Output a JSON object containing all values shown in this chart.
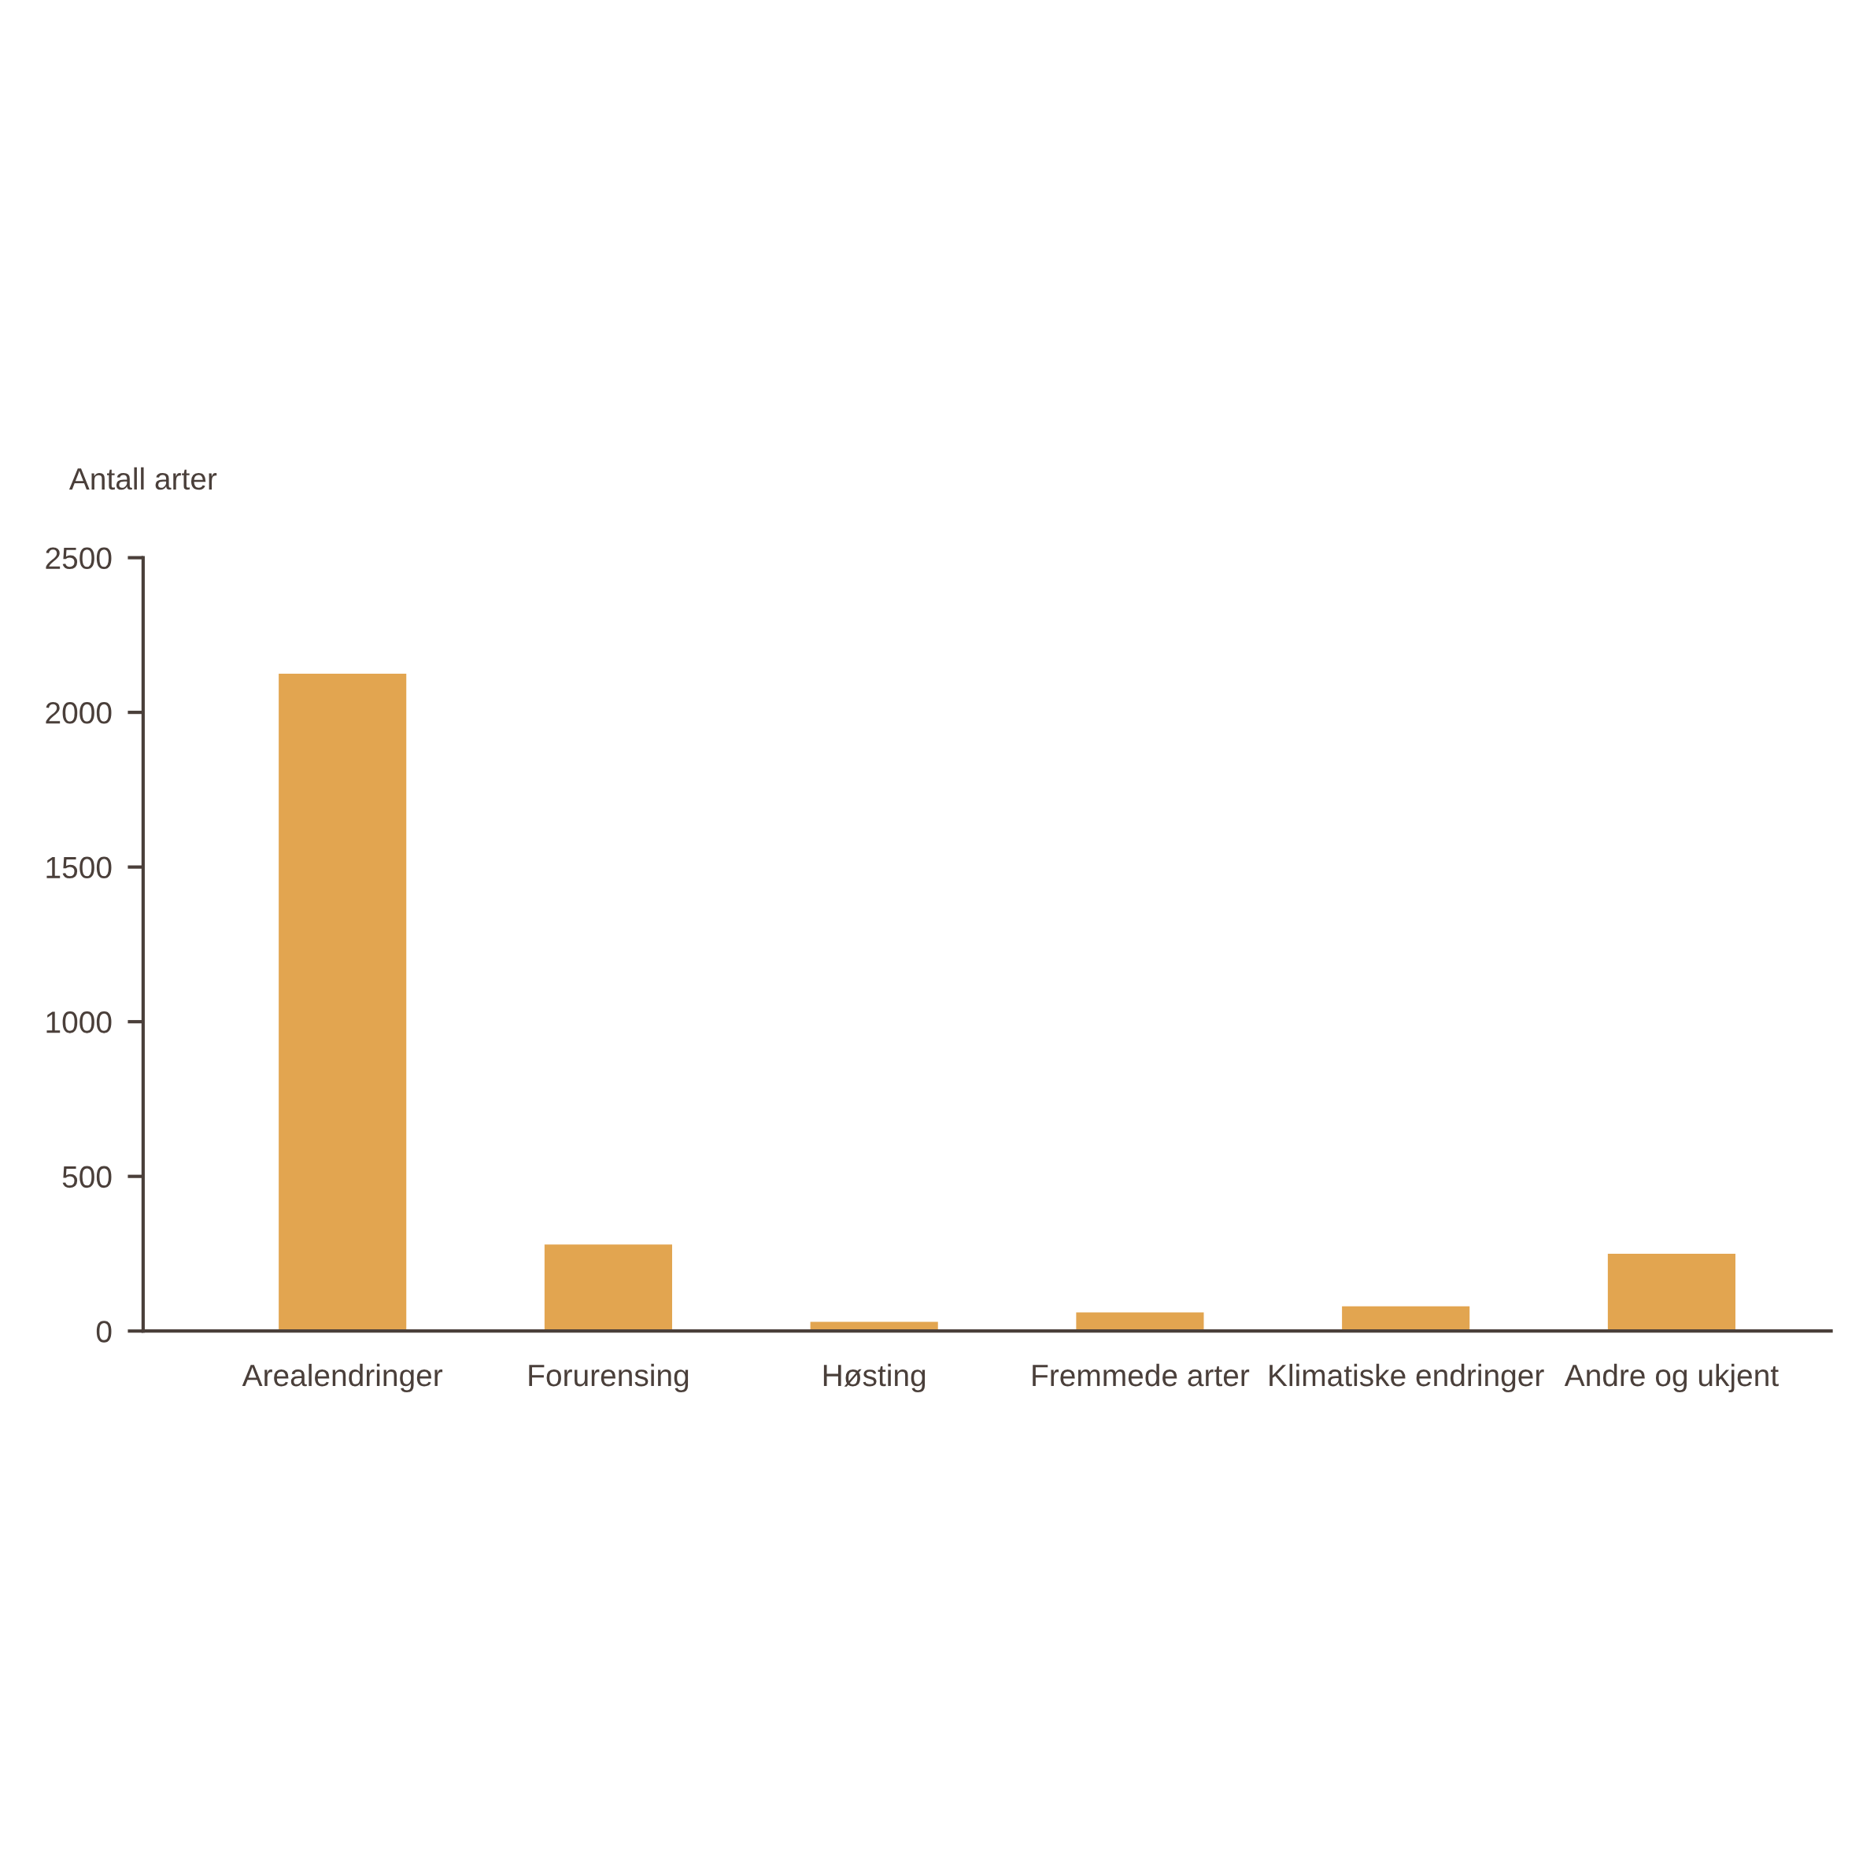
{
  "chart_data": {
    "type": "bar",
    "ylabel": "Antall arter",
    "categories": [
      "Arealendringer",
      "Forurensing",
      "Høsting",
      "Fremmede arter",
      "Klimatiske endringer",
      "Andre og ukjent"
    ],
    "values": [
      2125,
      280,
      30,
      60,
      80,
      250
    ],
    "color": "#e2a550",
    "ylim": [
      0,
      2500
    ],
    "yticks": [
      0,
      500,
      1000,
      1500,
      2000,
      2500
    ],
    "grid": false
  }
}
